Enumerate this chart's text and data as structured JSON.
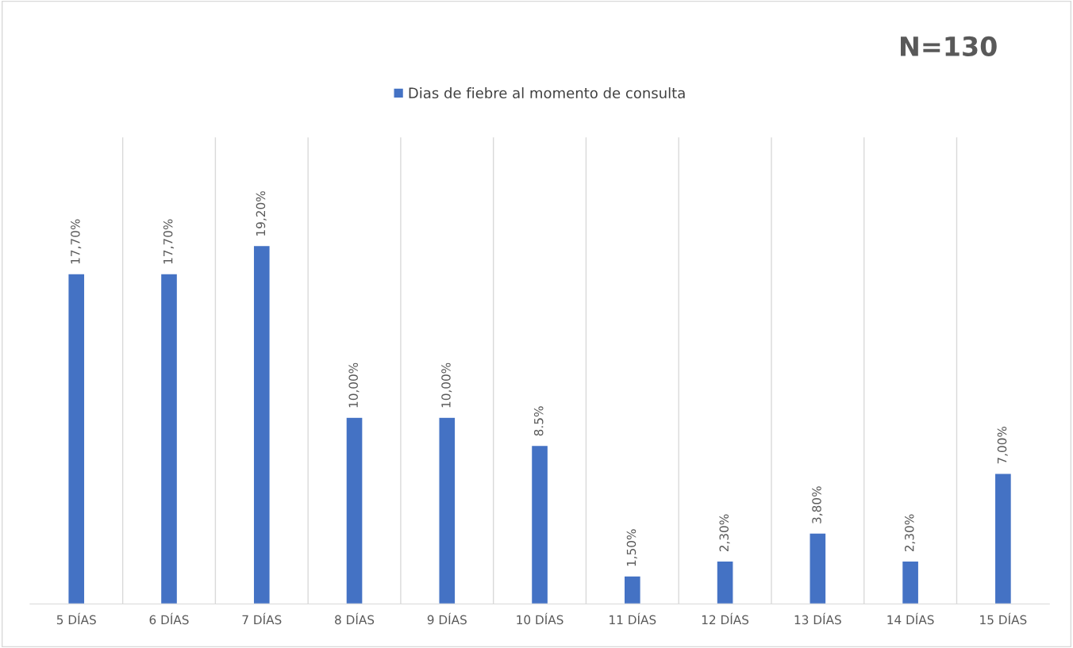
{
  "chart_data": {
    "type": "bar",
    "categories": [
      "5 DÍAS",
      "6 DÍAS",
      "7 DÍAS",
      "8 DÍAS",
      "9 DÍAS",
      "10 DÍAS",
      "11 DÍAS",
      "12 DÍAS",
      "13 DÍAS",
      "14 DÍAS",
      "15 DÍAS"
    ],
    "series": [
      {
        "name": "Dias de fiebre al momento de consulta",
        "color": "#4472c4",
        "values": [
          17.7,
          17.7,
          19.2,
          10.0,
          10.0,
          8.5,
          1.5,
          2.3,
          3.8,
          2.3,
          7.0
        ],
        "value_labels": [
          "17,70%",
          "17,70%",
          "19,20%",
          "10,00%",
          "10,00%",
          "8.5%",
          "1,50%",
          "2,30%",
          "3,80%",
          "2,30%",
          "7,00%"
        ]
      }
    ],
    "ylim": [
      0,
      25
    ],
    "grid": "x",
    "legend": "top",
    "annotations": [
      "N=130"
    ]
  }
}
